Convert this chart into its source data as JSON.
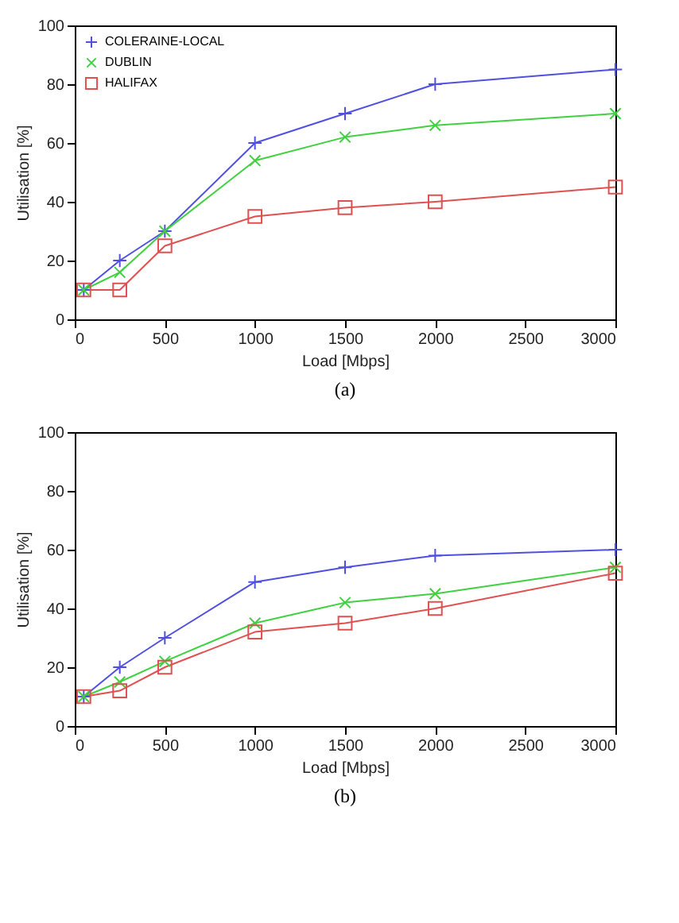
{
  "chart_data": [
    {
      "type": "line",
      "xlabel": "Load [Mbps]",
      "ylabel": "Utilisation [%]",
      "annotations": [
        "(a)"
      ],
      "x": [
        50,
        250,
        500,
        1000,
        1500,
        2000,
        3000
      ],
      "xlim": [
        0,
        3000
      ],
      "xticks": [
        0,
        500,
        1000,
        1500,
        2000,
        2500,
        3000
      ],
      "ylim": [
        0,
        100
      ],
      "yticks": [
        0,
        20,
        40,
        60,
        80,
        100
      ],
      "grid": false,
      "legend": "top left",
      "series": [
        {
          "name": "COLERAINE-LOCAL",
          "color": "#5050e0",
          "marker": "cross",
          "values": [
            10,
            20,
            30,
            60,
            70,
            80,
            85
          ]
        },
        {
          "name": "DUBLIN",
          "color": "#40d040",
          "marker": "x",
          "values": [
            10,
            16,
            30,
            54,
            62,
            66,
            70
          ]
        },
        {
          "name": "HALIFAX",
          "color": "#e05050",
          "marker": "square",
          "values": [
            10,
            10,
            25,
            35,
            38,
            40,
            45
          ]
        }
      ]
    },
    {
      "type": "line",
      "xlabel": "Load [Mbps]",
      "ylabel": "Utilisation [%]",
      "annotations": [
        "(b)"
      ],
      "x": [
        50,
        250,
        500,
        1000,
        1500,
        2000,
        3000
      ],
      "xlim": [
        0,
        3000
      ],
      "xticks": [
        0,
        500,
        1000,
        1500,
        2000,
        2500,
        3000
      ],
      "ylim": [
        0,
        100
      ],
      "yticks": [
        0,
        20,
        40,
        60,
        80,
        100
      ],
      "grid": false,
      "legend": "top left",
      "series": [
        {
          "name": "COLERAINE-LOCAL",
          "color": "#5050e0",
          "marker": "cross",
          "values": [
            10,
            20,
            30,
            49,
            54,
            58,
            60
          ]
        },
        {
          "name": "DUBLIN",
          "color": "#40d040",
          "marker": "x",
          "values": [
            10,
            15,
            22,
            35,
            42,
            45,
            54
          ]
        },
        {
          "name": "HALIFAX",
          "color": "#e05050",
          "marker": "square",
          "values": [
            10,
            12,
            20,
            32,
            35,
            40,
            52
          ]
        }
      ]
    }
  ]
}
